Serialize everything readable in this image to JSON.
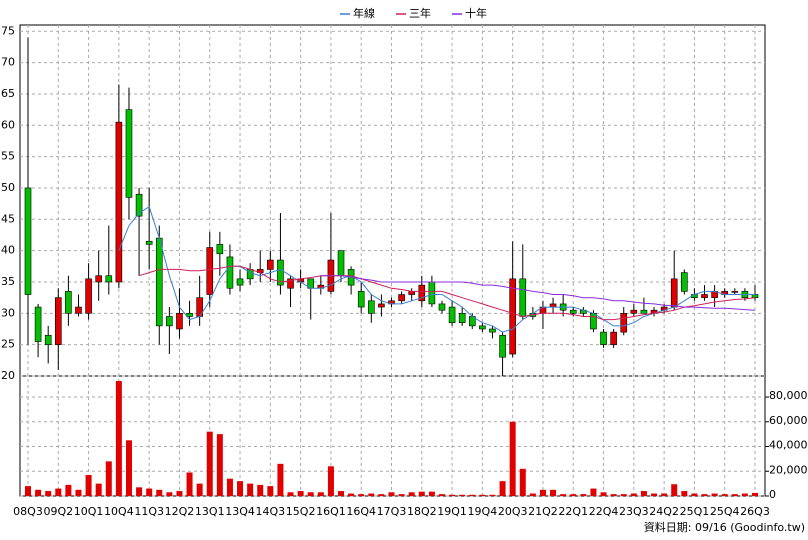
{
  "chart_data": {
    "type": "candlestick",
    "categories": [
      "08Q3",
      null,
      null,
      "09Q2",
      null,
      null,
      "10Q1",
      null,
      null,
      "10Q4",
      null,
      null,
      "11Q3",
      null,
      null,
      "12Q2",
      null,
      null,
      "13Q1",
      null,
      null,
      "13Q4",
      null,
      null,
      "14Q3",
      null,
      null,
      "15Q2",
      null,
      null,
      "16Q1",
      null,
      null,
      "16Q4",
      null,
      null,
      "17Q3",
      null,
      null,
      "18Q2",
      null,
      null,
      "19Q1",
      null,
      null,
      "19Q4",
      null,
      null,
      "20Q3",
      null,
      null,
      "21Q2",
      null,
      null,
      "22Q1",
      null,
      null,
      "22Q4",
      null,
      null,
      "23Q3",
      null,
      null,
      "24Q2",
      null,
      null,
      "25Q1",
      null,
      null,
      "25Q4",
      null,
      null,
      "26Q3"
    ],
    "open": [
      50,
      31,
      26.5,
      25,
      33.5,
      30,
      30,
      35,
      36,
      35,
      62.5,
      49,
      41.5,
      42,
      29.5,
      27.5,
      30,
      29.5,
      33,
      41,
      39,
      35.5,
      37,
      36.5,
      37,
      38.5,
      34,
      35,
      35.5,
      34,
      33.5,
      40,
      37,
      33.5,
      32,
      31,
      31.5,
      32,
      33,
      32,
      35,
      31.5,
      31,
      30,
      29.5,
      28,
      27.5,
      26.5,
      23.5,
      35.5,
      30,
      30,
      31,
      31.5,
      30.5,
      30.5,
      30,
      27,
      25,
      27,
      30,
      30.5,
      30,
      30.5,
      31,
      36.5,
      33,
      32.5,
      32.5,
      33,
      33.5,
      33.5,
      33
    ],
    "high": [
      74,
      31.5,
      28,
      34,
      36,
      33,
      38,
      40,
      44,
      66.5,
      66,
      50,
      50,
      44,
      31,
      34,
      32,
      36,
      43,
      43,
      41,
      37,
      38,
      40,
      40,
      46,
      36,
      37,
      35.5,
      36,
      46,
      40,
      37.5,
      35,
      33,
      33,
      32.5,
      33.5,
      34,
      36,
      36,
      32,
      32,
      31,
      30,
      28.5,
      28,
      27,
      41.5,
      41,
      31,
      32,
      32.5,
      33,
      31,
      31,
      30.5,
      27.5,
      27.5,
      31,
      31.5,
      32.5,
      31,
      31.5,
      40,
      37,
      34,
      34.5,
      34.5,
      34,
      34,
      34,
      34.5
    ],
    "low": [
      25,
      23,
      22,
      21,
      28,
      29.5,
      29,
      32,
      33,
      34,
      45,
      36,
      37,
      25,
      23.5,
      26,
      28,
      28,
      31,
      36,
      33,
      33.5,
      34.5,
      35,
      35,
      33,
      31,
      34,
      29,
      33,
      33,
      35,
      33,
      30,
      28.5,
      29.5,
      31,
      31.5,
      32,
      31,
      31,
      30,
      28,
      28,
      27.5,
      27,
      26,
      20,
      23,
      29,
      29,
      27.5,
      30,
      29.5,
      29.5,
      29.5,
      27,
      24.5,
      24.5,
      26.5,
      29.5,
      30,
      29.5,
      30,
      30.5,
      33,
      32,
      32,
      31,
      32.5,
      33,
      32,
      32
    ],
    "close": [
      33,
      25.5,
      25,
      32.5,
      30,
      31,
      35.5,
      36,
      35,
      60.5,
      48.5,
      45.5,
      41,
      28,
      28,
      30,
      29.5,
      32.5,
      40.5,
      39.5,
      34,
      34.5,
      35.5,
      37,
      38.5,
      34.5,
      35.5,
      35.5,
      34,
      34.5,
      38.5,
      36,
      34.5,
      31,
      30,
      31.5,
      32,
      33,
      33.5,
      34.5,
      31.5,
      30.5,
      28.5,
      28.5,
      28,
      27.5,
      27,
      23,
      35.5,
      29.5,
      29.5,
      31,
      31.5,
      30.5,
      30,
      30,
      27.5,
      25,
      27,
      30,
      30.5,
      30,
      30.5,
      31,
      35.5,
      33.5,
      32.5,
      33,
      33.5,
      33.5,
      33.5,
      32.5,
      32.5
    ],
    "up_color": "#e00000",
    "down_color": "#00c000",
    "volume": {
      "axis": "y2",
      "color": "#e00000",
      "values": [
        8000,
        5000,
        4000,
        6000,
        9000,
        5000,
        17000,
        10000,
        28000,
        93000,
        45000,
        7000,
        6000,
        5000,
        3000,
        4000,
        19000,
        10000,
        52000,
        50000,
        14000,
        12000,
        10000,
        9000,
        8000,
        26000,
        3000,
        4000,
        3000,
        3000,
        24000,
        4000,
        2000,
        1500,
        2000,
        1500,
        3000,
        1500,
        3000,
        3500,
        3500,
        1500,
        1000,
        1000,
        1000,
        1000,
        1000,
        12000,
        60000,
        22000,
        2000,
        5000,
        5000,
        1500,
        1500,
        1500,
        6000,
        3000,
        1500,
        1500,
        2000,
        4000,
        2000,
        2000,
        9500,
        4000,
        2000,
        1500,
        2000,
        1500,
        1500,
        2000,
        2500
      ]
    },
    "series": [
      {
        "name": "年線",
        "color": "#3a7fd0",
        "values": [
          null,
          null,
          null,
          null,
          null,
          null,
          null,
          null,
          null,
          40,
          44,
          46,
          47,
          42,
          36,
          31,
          29,
          29.5,
          32,
          35.5,
          37.5,
          37.5,
          36.5,
          36,
          36.5,
          37,
          36,
          35,
          34,
          34,
          34.5,
          35.5,
          36,
          35,
          33,
          32,
          31.5,
          31.5,
          32,
          32.5,
          33,
          33,
          32,
          31,
          29.5,
          28.5,
          28,
          27,
          27.5,
          29,
          30,
          31,
          31,
          31,
          31,
          30.5,
          30,
          29,
          28,
          28,
          28.5,
          29.5,
          30,
          30.5,
          31,
          32,
          33,
          33.5,
          33.5,
          33,
          33,
          33,
          33
        ]
      },
      {
        "name": "三年",
        "color": "#d0205a",
        "values": [
          null,
          null,
          null,
          null,
          null,
          null,
          null,
          null,
          null,
          null,
          null,
          36,
          36.5,
          37,
          37,
          37,
          36.8,
          36.8,
          37,
          37.2,
          37.5,
          37.5,
          37,
          36.5,
          35.5,
          35,
          35.2,
          35.5,
          35.7,
          36,
          36,
          36,
          36,
          35.5,
          35,
          34.5,
          34,
          33.8,
          33.5,
          33.5,
          33.5,
          33.5,
          33,
          32.5,
          32,
          31.5,
          31,
          30.5,
          30,
          29.5,
          29.8,
          30,
          30,
          30,
          29.8,
          29.5,
          29.5,
          29,
          29,
          29.2,
          29.5,
          29.8,
          30,
          30.2,
          30.5,
          31,
          31.2,
          31.5,
          31.8,
          32,
          32.2,
          32.3,
          32.5
        ]
      },
      {
        "name": "十年",
        "color": "#8a2be2",
        "values": [
          null,
          null,
          null,
          null,
          null,
          null,
          null,
          null,
          null,
          null,
          null,
          null,
          null,
          null,
          null,
          null,
          null,
          null,
          null,
          null,
          null,
          null,
          null,
          null,
          null,
          null,
          null,
          null,
          null,
          36,
          36,
          36,
          35.8,
          35.5,
          35.3,
          35,
          35,
          35,
          35,
          35,
          35,
          35,
          35,
          35,
          34.8,
          34.5,
          34.5,
          34.3,
          34,
          33.8,
          33.5,
          33.3,
          33,
          33,
          32.8,
          32.5,
          32.5,
          32.3,
          32,
          32,
          31.8,
          31.6,
          31.5,
          31.3,
          31.2,
          31,
          31,
          30.9,
          30.8,
          30.8,
          30.7,
          30.6,
          30.5
        ]
      }
    ],
    "ylim": [
      20,
      76
    ],
    "yticks": [
      20,
      25,
      30,
      35,
      40,
      45,
      50,
      55,
      60,
      65,
      70,
      75
    ],
    "y2lim": [
      0,
      97000
    ],
    "y2ticks": [
      0,
      {
        "value": 20000,
        "label": "20,000"
      },
      {
        "value": 40000,
        "label": "40,000"
      },
      {
        "value": 60000,
        "label": "60,000"
      },
      {
        "value": 80000,
        "label": "80,000"
      }
    ],
    "grid": true,
    "source": "資料日期: 09/16 (Goodinfo.tw)"
  }
}
